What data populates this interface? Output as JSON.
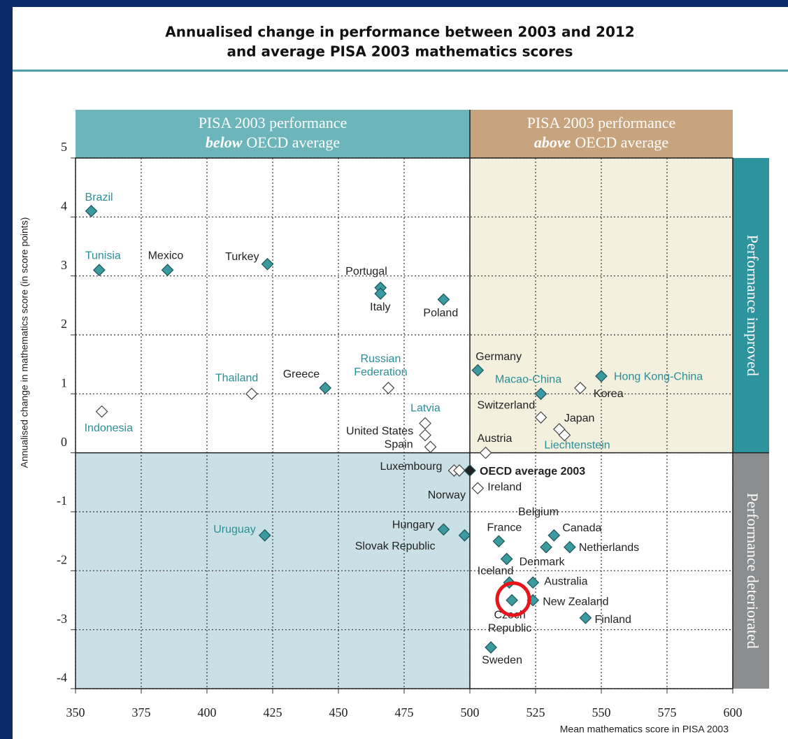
{
  "chart_data": {
    "type": "scatter",
    "title": [
      "Annualised change in performance between 2003 and 2012",
      "and average PISA 2003 mathematics scores"
    ],
    "x_label": "Mean mathematics score in PISA 2003",
    "y_label": "Annualised change in mathematics score (in score points)",
    "xlim": [
      350,
      600
    ],
    "ylim": [
      -4,
      5
    ],
    "xticks": [
      350,
      375,
      400,
      425,
      450,
      475,
      500,
      525,
      550,
      575,
      600
    ],
    "yticks": [
      5,
      4,
      3,
      2,
      1,
      0,
      -1,
      -2,
      -3,
      -4
    ],
    "grid": true,
    "x_split": 500,
    "y_split": 0,
    "quadrant_colors": {
      "upper_left": "#ffffff",
      "upper_right": "#f3f0de",
      "lower_left": "#c8e0e6",
      "lower_right": "#ffffff"
    },
    "top_bands": [
      {
        "line1": "PISA 2003 performance",
        "emphasis": "below",
        "rest": "OECD average",
        "color": "#6cb6bb"
      },
      {
        "line1": "PISA 2003 performance",
        "emphasis": "above",
        "rest": "OECD average",
        "color": "#c8a47e"
      }
    ],
    "side_bands": [
      {
        "label": "Performance improved",
        "color": "#2d949e"
      },
      {
        "label": "Performance deteriorated",
        "color": "#8b8d8f"
      }
    ],
    "points": [
      {
        "label": [
          "Brazil"
        ],
        "x": 356,
        "y": 4.1,
        "color": "#3a9aa0",
        "label_color": "#2a8f97"
      },
      {
        "label": [
          "Tunisia"
        ],
        "x": 359,
        "y": 3.1,
        "color": "#3a9aa0",
        "label_color": "#2a8f97"
      },
      {
        "label": [
          "Mexico"
        ],
        "x": 385,
        "y": 3.1,
        "color": "#3a9aa0",
        "label_color": "#222222"
      },
      {
        "label": [
          "Turkey"
        ],
        "x": 423,
        "y": 3.2,
        "color": "#3a9aa0",
        "label_color": "#222222"
      },
      {
        "label": [
          "Portugal"
        ],
        "x": 466,
        "y": 2.8,
        "color": "#3a9aa0",
        "label_color": "#222222"
      },
      {
        "label": [
          "Italy"
        ],
        "x": 466,
        "y": 2.7,
        "color": "#3a9aa0",
        "label_color": "#222222"
      },
      {
        "label": [
          "Poland"
        ],
        "x": 490,
        "y": 2.6,
        "color": "#3a9aa0",
        "label_color": "#222222"
      },
      {
        "label": [
          "Germany"
        ],
        "x": 503,
        "y": 1.4,
        "color": "#3a9aa0",
        "label_color": "#222222"
      },
      {
        "label": [
          "Hong Kong-China"
        ],
        "x": 550,
        "y": 1.3,
        "color": "#3a9aa0",
        "label_color": "#2a8f97"
      },
      {
        "label": [
          "Macao-China"
        ],
        "x": 527,
        "y": 1.0,
        "color": "#3a9aa0",
        "label_color": "#2a8f97"
      },
      {
        "label": [
          "Korea"
        ],
        "x": 542,
        "y": 1.1,
        "color": "#ffffff",
        "label_color": "#222222"
      },
      {
        "label": [
          "Switzerland"
        ],
        "x": 527,
        "y": 0.6,
        "color": "#ffffff",
        "label_color": "#222222"
      },
      {
        "label": [
          "Japan"
        ],
        "x": 534,
        "y": 0.4,
        "color": "#ffffff",
        "label_color": "#222222"
      },
      {
        "label": [
          "Liechtenstein"
        ],
        "x": 536,
        "y": 0.3,
        "color": "#ffffff",
        "label_color": "#2a8f97"
      },
      {
        "label": [
          "Austria"
        ],
        "x": 506,
        "y": 0.0,
        "color": "#ffffff",
        "label_color": "#222222"
      },
      {
        "label": [
          "Thailand"
        ],
        "x": 417,
        "y": 1.0,
        "color": "#ffffff",
        "label_color": "#2a8f97"
      },
      {
        "label": [
          "Greece"
        ],
        "x": 445,
        "y": 1.1,
        "color": "#3a9aa0",
        "label_color": "#222222"
      },
      {
        "label": [
          "Russian",
          "Federation"
        ],
        "x": 469,
        "y": 1.1,
        "color": "#ffffff",
        "label_color": "#2a8f97"
      },
      {
        "label": [
          "Indonesia"
        ],
        "x": 360,
        "y": 0.7,
        "color": "#ffffff",
        "label_color": "#2a8f97"
      },
      {
        "label": [
          "Latvia"
        ],
        "x": 483,
        "y": 0.5,
        "color": "#ffffff",
        "label_color": "#2a8f97"
      },
      {
        "label": [
          "United States"
        ],
        "x": 483,
        "y": 0.3,
        "color": "#ffffff",
        "label_color": "#222222"
      },
      {
        "label": [
          "Spain"
        ],
        "x": 485,
        "y": 0.1,
        "color": "#ffffff",
        "label_color": "#222222"
      },
      {
        "label": [
          "Luxembourg"
        ],
        "x": 494,
        "y": -0.3,
        "color": "#ffffff",
        "label_color": "#222222"
      },
      {
        "label": [
          "Norway"
        ],
        "x": 496,
        "y": -0.3,
        "color": "#ffffff",
        "label_color": "#222222"
      },
      {
        "label": [
          "OECD average 2003"
        ],
        "x": 500,
        "y": -0.3,
        "color": "#222222",
        "label_color": "#222222"
      },
      {
        "label": [
          "Ireland"
        ],
        "x": 503,
        "y": -0.6,
        "color": "#ffffff",
        "label_color": "#222222"
      },
      {
        "label": [
          "Uruguay"
        ],
        "x": 422,
        "y": -1.4,
        "color": "#3a9aa0",
        "label_color": "#2a8f97"
      },
      {
        "label": [
          "Hungary"
        ],
        "x": 490,
        "y": -1.3,
        "color": "#3a9aa0",
        "label_color": "#222222"
      },
      {
        "label": [
          "Slovak Republic"
        ],
        "x": 498,
        "y": -1.4,
        "color": "#3a9aa0",
        "label_color": "#222222"
      },
      {
        "label": [
          "France"
        ],
        "x": 511,
        "y": -1.5,
        "color": "#3a9aa0",
        "label_color": "#222222"
      },
      {
        "label": [
          "Belgium"
        ],
        "x": 529,
        "y": -1.6,
        "color": "#3a9aa0",
        "label_color": "#222222"
      },
      {
        "label": [
          "Canada"
        ],
        "x": 532,
        "y": -1.4,
        "color": "#3a9aa0",
        "label_color": "#222222"
      },
      {
        "label": [
          "Netherlands"
        ],
        "x": 538,
        "y": -1.6,
        "color": "#3a9aa0",
        "label_color": "#222222"
      },
      {
        "label": [
          "Denmark"
        ],
        "x": 514,
        "y": -1.8,
        "color": "#3a9aa0",
        "label_color": "#222222"
      },
      {
        "label": [
          "Iceland"
        ],
        "x": 515,
        "y": -2.2,
        "color": "#3a9aa0",
        "label_color": "#222222"
      },
      {
        "label": [
          "Australia"
        ],
        "x": 524,
        "y": -2.2,
        "color": "#3a9aa0",
        "label_color": "#222222"
      },
      {
        "label": [
          "Czech",
          "Republic"
        ],
        "x": 516,
        "y": -2.5,
        "color": "#3a9aa0",
        "label_color": "#222222"
      },
      {
        "label": [
          "New Zealand"
        ],
        "x": 524,
        "y": -2.5,
        "color": "#3a9aa0",
        "label_color": "#222222"
      },
      {
        "label": [
          "Finland"
        ],
        "x": 544,
        "y": -2.8,
        "color": "#3a9aa0",
        "label_color": "#222222"
      },
      {
        "label": [
          "Sweden"
        ],
        "x": 508,
        "y": -3.3,
        "color": "#3a9aa0",
        "label_color": "#222222"
      }
    ]
  }
}
